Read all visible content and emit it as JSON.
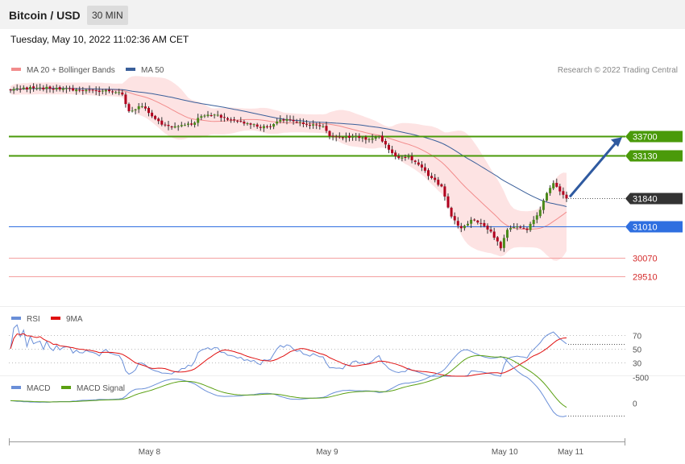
{
  "header": {
    "title": "Bitcoin / USD",
    "interval": "30 MIN",
    "timestamp": "Tuesday, May 10, 2022 11:02:36 AM CET"
  },
  "legend": {
    "ma20_label": "MA 20 + Bollinger Bands",
    "ma50_label": "MA 50",
    "copyright": "Research © 2022 Trading Central",
    "rsi_label": "RSI",
    "rsi_ma_label": "9MA",
    "macd_label": "MACD",
    "macd_signal_label": "MACD Signal"
  },
  "colors": {
    "bull": "#4a8a1a",
    "bear": "#b0001e",
    "resistance": "#4a9a0a",
    "support": "#2f6fe0",
    "target_low": "#d42b2b",
    "current": "#333333",
    "ma20": "#f28c8c",
    "ma50": "#3a5f9a",
    "band_fill": "#fde3e3",
    "rsi": "#6a8fd8",
    "rsi_ma": "#e01010",
    "macd": "#6a8fd8",
    "macd_signal": "#5aa012",
    "arrow": "#2f5aa0"
  },
  "chart_data": [
    {
      "type": "candlestick",
      "title": "Bitcoin / USD",
      "xlabel": "",
      "ylabel": "",
      "x_ticks": [
        "May 8",
        "May 9",
        "May 10",
        "May 11"
      ],
      "ylim": [
        29100,
        35200
      ],
      "levels": [
        {
          "label": "33700",
          "value": 33700,
          "kind": "resistance"
        },
        {
          "label": "33130",
          "value": 33130,
          "kind": "resistance"
        },
        {
          "label": "31840",
          "value": 31840,
          "kind": "current"
        },
        {
          "label": "31010",
          "value": 31010,
          "kind": "support"
        },
        {
          "label": "30070",
          "value": 30070,
          "kind": "target"
        },
        {
          "label": "29510",
          "value": 29510,
          "kind": "target"
        }
      ],
      "projection": {
        "from": 31840,
        "to": 33700
      },
      "keyframes": [
        {
          "i": 0,
          "close": 35080
        },
        {
          "i": 8,
          "close": 35150
        },
        {
          "i": 20,
          "close": 35100
        },
        {
          "i": 30,
          "close": 35050
        },
        {
          "i": 34,
          "close": 34950
        },
        {
          "i": 36,
          "close": 34450
        },
        {
          "i": 40,
          "close": 34600
        },
        {
          "i": 43,
          "close": 34300
        },
        {
          "i": 46,
          "close": 34050
        },
        {
          "i": 50,
          "close": 34000
        },
        {
          "i": 55,
          "close": 34050
        },
        {
          "i": 58,
          "close": 34300
        },
        {
          "i": 62,
          "close": 34350
        },
        {
          "i": 66,
          "close": 34200
        },
        {
          "i": 70,
          "close": 34150
        },
        {
          "i": 73,
          "close": 34050
        },
        {
          "i": 76,
          "close": 33950
        },
        {
          "i": 79,
          "close": 34000
        },
        {
          "i": 82,
          "close": 34200
        },
        {
          "i": 86,
          "close": 34150
        },
        {
          "i": 90,
          "close": 34050
        },
        {
          "i": 95,
          "close": 34000
        },
        {
          "i": 97,
          "close": 33700
        },
        {
          "i": 101,
          "close": 33650
        },
        {
          "i": 104,
          "close": 33700
        },
        {
          "i": 108,
          "close": 33600
        },
        {
          "i": 112,
          "close": 33700
        },
        {
          "i": 115,
          "close": 33300
        },
        {
          "i": 118,
          "close": 33050
        },
        {
          "i": 121,
          "close": 33100
        },
        {
          "i": 124,
          "close": 32850
        },
        {
          "i": 128,
          "close": 32450
        },
        {
          "i": 131,
          "close": 32200
        },
        {
          "i": 134,
          "close": 31300
        },
        {
          "i": 137,
          "close": 30950
        },
        {
          "i": 140,
          "close": 31200
        },
        {
          "i": 143,
          "close": 31100
        },
        {
          "i": 146,
          "close": 30850
        },
        {
          "i": 149,
          "close": 30350
        },
        {
          "i": 151,
          "close": 30900
        },
        {
          "i": 154,
          "close": 31000
        },
        {
          "i": 157,
          "close": 30900
        },
        {
          "i": 159,
          "close": 31200
        },
        {
          "i": 161,
          "close": 31500
        },
        {
          "i": 163,
          "close": 32000
        },
        {
          "i": 165,
          "close": 32300
        },
        {
          "i": 167,
          "close": 32050
        },
        {
          "i": 169,
          "close": 31840
        }
      ]
    },
    {
      "type": "line",
      "title": "RSI",
      "series": [
        {
          "name": "RSI"
        },
        {
          "name": "9MA"
        }
      ],
      "y_ticks": [
        70,
        50,
        30
      ],
      "ylim": [
        10,
        85
      ]
    },
    {
      "type": "line",
      "title": "MACD",
      "series": [
        {
          "name": "MACD"
        },
        {
          "name": "MACD Signal"
        }
      ],
      "y_ticks": [
        0,
        -500
      ],
      "ylim": [
        -1200,
        150
      ]
    }
  ]
}
